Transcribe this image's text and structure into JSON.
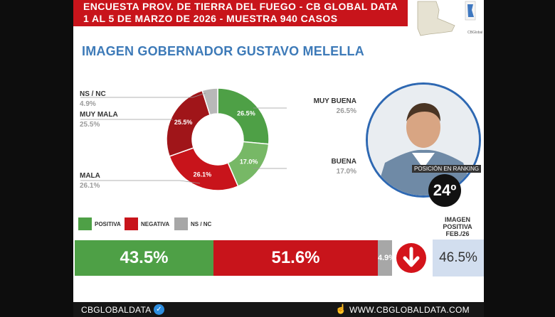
{
  "header": {
    "line1": "ENCUESTA PROV. DE TIERRA DEL FUEGO - CB GLOBAL DATA",
    "line2": "1 AL 5 DE MARZO DE 2026 - MUESTRA 940 CASOS"
  },
  "map_credit": "CBGlobal",
  "page_title": "IMAGEN GOBERNADOR  GUSTAVO MELELLA",
  "ranking": {
    "label": "POSICIÓN EN RANKING",
    "value": "24º"
  },
  "legend": [
    {
      "label": "POSITIVA",
      "color": "#4ea046"
    },
    {
      "label": "NEGATIVA",
      "color": "#c8141b"
    },
    {
      "label": "NS / NC",
      "color": "#a7a7a7"
    }
  ],
  "summary": {
    "positive": "43.5%",
    "negative": "51.6%",
    "nsnc": "4.9%",
    "trend_icon": "down-arrow-icon",
    "previous_title": "IMAGEN POSITIVA FEB./26",
    "previous_value": "46.5%"
  },
  "footer": {
    "brand": "CBGLOBALDATA",
    "website": "WWW.CBGLOBALDATA.COM"
  },
  "chart_data": {
    "type": "pie",
    "title": "",
    "categories": [
      "MUY BUENA",
      "BUENA",
      "MALA",
      "MUY MALA",
      "NS / NC"
    ],
    "values": [
      26.5,
      17.0,
      26.1,
      25.5,
      4.9
    ],
    "value_labels": [
      "26.5%",
      "17.0%",
      "26.1%",
      "25.5%",
      "4.9%"
    ],
    "colors": [
      "#4ea046",
      "#77b866",
      "#c8141b",
      "#a01519",
      "#b8b8b8"
    ],
    "donut": true
  }
}
